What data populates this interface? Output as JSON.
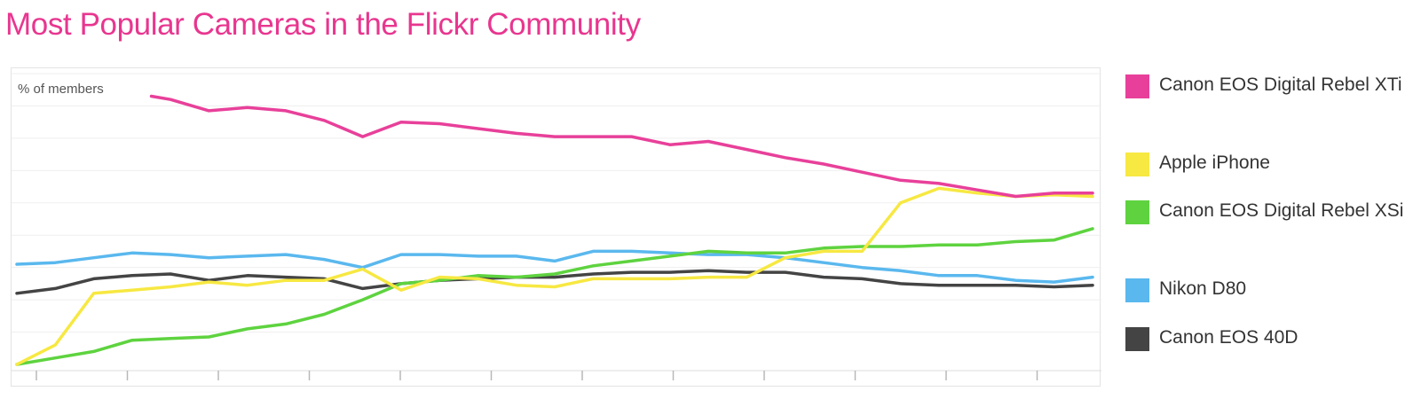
{
  "title": "Most Popular Cameras in the Flickr Community",
  "colors": {
    "title": "#e8368f"
  },
  "chart_data": {
    "type": "line",
    "title": "Most Popular Cameras in the Flickr Community",
    "ylabel": "% of members",
    "xlabel": "",
    "grid": true,
    "legend_position": "right",
    "x": [
      0,
      1,
      2,
      3,
      4,
      5,
      6,
      7,
      8,
      9,
      10,
      11,
      12,
      13,
      14,
      15,
      16,
      17,
      18,
      19,
      20,
      21,
      22,
      23,
      24,
      25,
      26,
      27,
      28
    ],
    "ylim": [
      0,
      9
    ],
    "series": [
      {
        "name": "Canon EOS Digital Rebel XTi",
        "color": "#e8409a",
        "x": [
          3.5,
          4,
          5,
          6,
          7,
          8,
          9,
          10,
          11,
          12,
          13,
          14,
          15,
          16,
          17,
          18,
          19,
          20,
          21,
          22,
          23,
          24,
          25,
          26,
          27,
          28
        ],
        "values": [
          8.3,
          8.2,
          7.85,
          7.95,
          7.85,
          7.55,
          7.05,
          7.5,
          7.45,
          7.3,
          7.15,
          7.05,
          7.05,
          7.05,
          6.8,
          6.9,
          6.65,
          6.4,
          6.2,
          5.95,
          5.7,
          5.6,
          5.4,
          5.2,
          5.3,
          5.3
        ]
      },
      {
        "name": "Apple iPhone",
        "color": "#f7e842",
        "values": [
          0,
          0.6,
          2.2,
          2.3,
          2.4,
          2.55,
          2.45,
          2.6,
          2.6,
          2.95,
          2.3,
          2.7,
          2.65,
          2.45,
          2.4,
          2.65,
          2.65,
          2.65,
          2.7,
          2.7,
          3.3,
          3.5,
          3.5,
          5.0,
          5.45,
          5.3,
          5.2,
          5.25,
          5.2
        ]
      },
      {
        "name": "Canon EOS Digital Rebel XSi",
        "color": "#5ed33f",
        "values": [
          0,
          0.2,
          0.4,
          0.75,
          0.8,
          0.85,
          1.1,
          1.25,
          1.55,
          2.0,
          2.5,
          2.6,
          2.75,
          2.7,
          2.8,
          3.05,
          3.2,
          3.35,
          3.5,
          3.45,
          3.45,
          3.6,
          3.65,
          3.65,
          3.7,
          3.7,
          3.8,
          3.85,
          4.2
        ]
      },
      {
        "name": "Nikon D80",
        "color": "#5ab8ee",
        "values": [
          3.1,
          3.15,
          3.3,
          3.45,
          3.4,
          3.3,
          3.35,
          3.4,
          3.25,
          3.0,
          3.4,
          3.4,
          3.35,
          3.35,
          3.2,
          3.5,
          3.5,
          3.45,
          3.4,
          3.4,
          3.3,
          3.15,
          3.0,
          2.9,
          2.75,
          2.75,
          2.6,
          2.55,
          2.7
        ]
      },
      {
        "name": "Canon EOS 40D",
        "color": "#444444",
        "values": [
          2.2,
          2.35,
          2.65,
          2.75,
          2.8,
          2.6,
          2.75,
          2.7,
          2.65,
          2.35,
          2.5,
          2.6,
          2.65,
          2.7,
          2.7,
          2.8,
          2.85,
          2.85,
          2.9,
          2.85,
          2.85,
          2.7,
          2.65,
          2.5,
          2.45,
          2.45,
          2.45,
          2.4,
          2.45
        ]
      }
    ]
  }
}
